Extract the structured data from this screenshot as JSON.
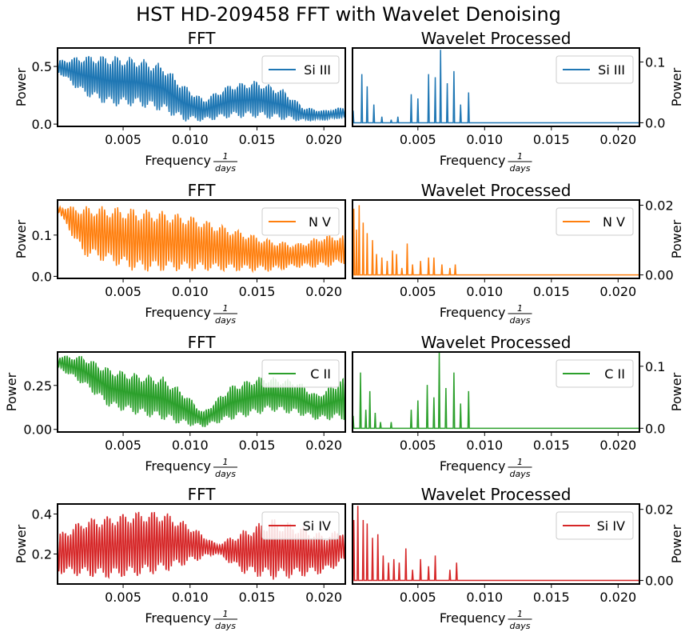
{
  "figure": {
    "title": "HST HD-209458 FFT with Wavelet Denoising"
  },
  "chart_data": [
    {
      "type": "line",
      "panel": "FFT",
      "title": "FFT",
      "series": [
        {
          "name": "Si III",
          "color": "#1f77b4",
          "envelope": {
            "x": [
              0.0001,
              0.002,
              0.004,
              0.006,
              0.008,
              0.0095,
              0.011,
              0.013,
              0.015,
              0.017,
              0.0185,
              0.02,
              0.0215
            ],
            "hi": [
              0.55,
              0.6,
              0.6,
              0.58,
              0.52,
              0.35,
              0.22,
              0.35,
              0.38,
              0.3,
              0.15,
              0.12,
              0.15
            ],
            "lo": [
              0.45,
              0.25,
              0.15,
              0.15,
              0.1,
              0.02,
              0.02,
              0.05,
              0.05,
              0.03,
              0.02,
              0.03,
              0.05
            ]
          },
          "cycles": 120
        }
      ],
      "xlim": [
        0.0001,
        0.0216
      ],
      "ylim": [
        -0.02,
        0.66
      ],
      "yticks": [
        0.0,
        0.5
      ],
      "ytick_labels": [
        "0.0",
        "0.5"
      ],
      "xticks": [
        0.005,
        0.01,
        0.015,
        0.02
      ],
      "xtick_labels": [
        "0.005",
        "0.010",
        "0.015",
        "0.020"
      ],
      "ylabel": "Power",
      "xlabel": "Frequency",
      "xlabel_frac": {
        "num": "1",
        "den": "days"
      },
      "legend": "upper right",
      "yaxis_side": "left"
    },
    {
      "type": "line",
      "panel": "Wavelet",
      "title": "Wavelet Processed",
      "series": [
        {
          "name": "Si III",
          "color": "#1f77b4",
          "peaks": [
            [
              0.00015,
              0.02
            ],
            [
              0.0008,
              0.08
            ],
            [
              0.0012,
              0.06
            ],
            [
              0.0017,
              0.03
            ],
            [
              0.0023,
              0.01
            ],
            [
              0.003,
              0.005
            ],
            [
              0.0035,
              0.01
            ],
            [
              0.0045,
              0.047
            ],
            [
              0.005,
              0.04
            ],
            [
              0.0058,
              0.08
            ],
            [
              0.0063,
              0.075
            ],
            [
              0.0067,
              0.12
            ],
            [
              0.0072,
              0.065
            ],
            [
              0.0077,
              0.085
            ],
            [
              0.0082,
              0.03
            ],
            [
              0.0088,
              0.05
            ]
          ]
        }
      ],
      "xlim": [
        0.0001,
        0.0216
      ],
      "ylim": [
        -0.006,
        0.123
      ],
      "yticks": [
        0.0,
        0.1
      ],
      "ytick_labels": [
        "0.0",
        "0.1"
      ],
      "xticks": [
        0.005,
        0.01,
        0.015,
        0.02
      ],
      "xtick_labels": [
        "0.005",
        "0.010",
        "0.015",
        "0.020"
      ],
      "ylabel": "Power",
      "xlabel": "Frequency",
      "xlabel_frac": {
        "num": "1",
        "den": "days"
      },
      "legend": "upper right",
      "yaxis_side": "right"
    },
    {
      "type": "line",
      "panel": "FFT",
      "title": "FFT",
      "series": [
        {
          "name": "N V",
          "color": "#ff7f0e",
          "envelope": {
            "x": [
              0.0001,
              0.002,
              0.004,
              0.006,
              0.008,
              0.01,
              0.012,
              0.014,
              0.016,
              0.018,
              0.02,
              0.0215
            ],
            "hi": [
              0.17,
              0.17,
              0.17,
              0.165,
              0.16,
              0.15,
              0.13,
              0.11,
              0.09,
              0.08,
              0.1,
              0.1
            ],
            "lo": [
              0.16,
              0.05,
              0.03,
              0.01,
              0.01,
              0.01,
              0.01,
              0.01,
              0.01,
              0.02,
              0.02,
              0.03
            ]
          },
          "cycles": 110
        }
      ],
      "xlim": [
        0.0001,
        0.0216
      ],
      "ylim": [
        -0.005,
        0.185
      ],
      "yticks": [
        0.0,
        0.1
      ],
      "ytick_labels": [
        "0.0",
        "0.1"
      ],
      "xticks": [
        0.005,
        0.01,
        0.015,
        0.02
      ],
      "xtick_labels": [
        "0.005",
        "0.010",
        "0.015",
        "0.020"
      ],
      "ylabel": "Power",
      "xlabel": "Frequency",
      "xlabel_frac": {
        "num": "1",
        "den": "days"
      },
      "legend": "upper right",
      "yaxis_side": "left"
    },
    {
      "type": "line",
      "panel": "Wavelet",
      "title": "Wavelet Processed",
      "series": [
        {
          "name": "N V",
          "color": "#ff7f0e",
          "peaks": [
            [
              0.0002,
              0.019
            ],
            [
              0.0004,
              0.013
            ],
            [
              0.0006,
              0.02
            ],
            [
              0.0009,
              0.015
            ],
            [
              0.0012,
              0.012
            ],
            [
              0.0016,
              0.01
            ],
            [
              0.0019,
              0.006
            ],
            [
              0.0023,
              0.005
            ],
            [
              0.0027,
              0.004
            ],
            [
              0.0031,
              0.007
            ],
            [
              0.0034,
              0.006
            ],
            [
              0.0038,
              0.002
            ],
            [
              0.0042,
              0.009
            ],
            [
              0.0046,
              0.003
            ],
            [
              0.0052,
              0.004
            ],
            [
              0.0058,
              0.005
            ],
            [
              0.0062,
              0.005
            ],
            [
              0.0068,
              0.003
            ],
            [
              0.0074,
              0.002
            ],
            [
              0.0078,
              0.003
            ]
          ]
        }
      ],
      "xlim": [
        0.0001,
        0.0216
      ],
      "ylim": [
        -0.001,
        0.0215
      ],
      "yticks": [
        0.0,
        0.02
      ],
      "ytick_labels": [
        "0.00",
        "0.02"
      ],
      "xticks": [
        0.005,
        0.01,
        0.015,
        0.02
      ],
      "xtick_labels": [
        "0.005",
        "0.010",
        "0.015",
        "0.020"
      ],
      "ylabel": "Power",
      "xlabel": "Frequency",
      "xlabel_frac": {
        "num": "1",
        "den": "days"
      },
      "legend": "upper right",
      "yaxis_side": "right"
    },
    {
      "type": "line",
      "panel": "FFT",
      "title": "FFT",
      "series": [
        {
          "name": "C II",
          "color": "#2ca02c",
          "envelope": {
            "x": [
              0.0001,
              0.002,
              0.004,
              0.006,
              0.008,
              0.0095,
              0.011,
              0.013,
              0.015,
              0.016,
              0.018,
              0.0195,
              0.0215
            ],
            "hi": [
              0.42,
              0.42,
              0.35,
              0.32,
              0.3,
              0.22,
              0.1,
              0.25,
              0.3,
              0.3,
              0.28,
              0.2,
              0.3
            ],
            "lo": [
              0.35,
              0.25,
              0.12,
              0.08,
              0.05,
              0.02,
              0.01,
              0.05,
              0.08,
              0.1,
              0.08,
              0.05,
              0.05
            ]
          },
          "cycles": 120
        }
      ],
      "xlim": [
        0.0001,
        0.0216
      ],
      "ylim": [
        -0.015,
        0.44
      ],
      "yticks": [
        0.0,
        0.25
      ],
      "ytick_labels": [
        "0.00",
        "0.25"
      ],
      "xticks": [
        0.005,
        0.01,
        0.015,
        0.02
      ],
      "xtick_labels": [
        "0.005",
        "0.010",
        "0.015",
        "0.020"
      ],
      "ylabel": "Power",
      "xlabel": "Frequency",
      "xlabel_frac": {
        "num": "1",
        "den": "days"
      },
      "legend": "upper right",
      "yaxis_side": "left"
    },
    {
      "type": "line",
      "panel": "Wavelet",
      "title": "Wavelet Processed",
      "series": [
        {
          "name": "C II",
          "color": "#2ca02c",
          "peaks": [
            [
              0.00015,
              0.02
            ],
            [
              0.0007,
              0.09
            ],
            [
              0.0011,
              0.03
            ],
            [
              0.0014,
              0.06
            ],
            [
              0.0018,
              0.025
            ],
            [
              0.0022,
              0.01
            ],
            [
              0.003,
              0.01
            ],
            [
              0.0045,
              0.03
            ],
            [
              0.005,
              0.045
            ],
            [
              0.0057,
              0.07
            ],
            [
              0.0062,
              0.05
            ],
            [
              0.0066,
              0.125
            ],
            [
              0.0071,
              0.065
            ],
            [
              0.0077,
              0.09
            ],
            [
              0.0082,
              0.04
            ],
            [
              0.0088,
              0.06
            ]
          ]
        }
      ],
      "xlim": [
        0.0001,
        0.0216
      ],
      "ylim": [
        -0.006,
        0.123
      ],
      "yticks": [
        0.0,
        0.1
      ],
      "ytick_labels": [
        "0.0",
        "0.1"
      ],
      "xticks": [
        0.005,
        0.01,
        0.015,
        0.02
      ],
      "xtick_labels": [
        "0.005",
        "0.010",
        "0.015",
        "0.020"
      ],
      "ylabel": "Power",
      "xlabel": "Frequency",
      "xlabel_frac": {
        "num": "1",
        "den": "days"
      },
      "legend": "upper right",
      "yaxis_side": "right"
    },
    {
      "type": "line",
      "panel": "FFT",
      "title": "FFT",
      "series": [
        {
          "name": "Si IV",
          "color": "#d62728",
          "envelope": {
            "x": [
              0.0001,
              0.002,
              0.004,
              0.006,
              0.008,
              0.01,
              0.012,
              0.014,
              0.016,
              0.018,
              0.02,
              0.0215
            ],
            "hi": [
              0.3,
              0.38,
              0.4,
              0.42,
              0.42,
              0.35,
              0.25,
              0.32,
              0.38,
              0.35,
              0.3,
              0.33
            ],
            "lo": [
              0.1,
              0.08,
              0.07,
              0.08,
              0.1,
              0.15,
              0.2,
              0.1,
              0.07,
              0.08,
              0.1,
              0.15
            ]
          },
          "cycles": 110
        }
      ],
      "xlim": [
        0.0001,
        0.0216
      ],
      "ylim": [
        0.05,
        0.45
      ],
      "yticks": [
        0.2,
        0.4
      ],
      "ytick_labels": [
        "0.2",
        "0.4"
      ],
      "xticks": [
        0.005,
        0.01,
        0.015,
        0.02
      ],
      "xtick_labels": [
        "0.005",
        "0.010",
        "0.015",
        "0.020"
      ],
      "ylabel": "Power",
      "xlabel": "Frequency",
      "xlabel_frac": {
        "num": "1",
        "den": "days"
      },
      "legend": "upper right",
      "yaxis_side": "left"
    },
    {
      "type": "line",
      "panel": "Wavelet",
      "title": "Wavelet Processed",
      "series": [
        {
          "name": "Si IV",
          "color": "#d62728",
          "peaks": [
            [
              0.0002,
              0.017
            ],
            [
              0.0005,
              0.021
            ],
            [
              0.0009,
              0.017
            ],
            [
              0.0012,
              0.016
            ],
            [
              0.0016,
              0.012
            ],
            [
              0.002,
              0.013
            ],
            [
              0.0024,
              0.007
            ],
            [
              0.0028,
              0.005
            ],
            [
              0.0032,
              0.006
            ],
            [
              0.0036,
              0.005
            ],
            [
              0.0041,
              0.009
            ],
            [
              0.0046,
              0.003
            ],
            [
              0.0052,
              0.006
            ],
            [
              0.0058,
              0.004
            ],
            [
              0.0063,
              0.007
            ],
            [
              0.0074,
              0.003
            ],
            [
              0.0079,
              0.005
            ]
          ]
        }
      ],
      "xlim": [
        0.0001,
        0.0216
      ],
      "ylim": [
        -0.001,
        0.0215
      ],
      "yticks": [
        0.0,
        0.02
      ],
      "ytick_labels": [
        "0.00",
        "0.02"
      ],
      "xticks": [
        0.005,
        0.01,
        0.015,
        0.02
      ],
      "xtick_labels": [
        "0.005",
        "0.010",
        "0.015",
        "0.020"
      ],
      "ylabel": "Power",
      "xlabel": "Frequency",
      "xlabel_frac": {
        "num": "1",
        "den": "days"
      },
      "legend": "upper right",
      "yaxis_side": "right"
    }
  ]
}
